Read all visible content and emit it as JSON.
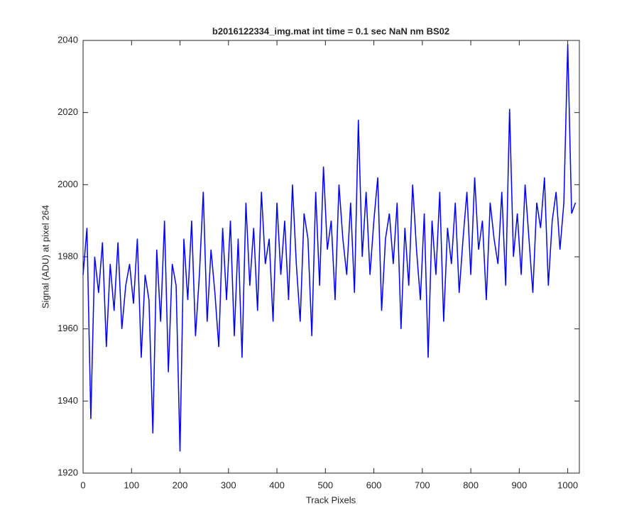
{
  "chart_data": {
    "type": "line",
    "title": "b2016122334_img.mat int time = 0.1 sec  NaN nm BS02",
    "x_label": "Track Pixels",
    "y_label": "Signal (ADU) at pixel 264",
    "x": [
      0,
      8,
      16,
      24,
      32,
      40,
      48,
      56,
      64,
      72,
      80,
      88,
      96,
      104,
      112,
      120,
      128,
      136,
      144,
      152,
      160,
      168,
      176,
      184,
      192,
      200,
      208,
      216,
      224,
      232,
      240,
      248,
      256,
      264,
      272,
      280,
      288,
      296,
      304,
      312,
      320,
      328,
      336,
      344,
      352,
      360,
      368,
      376,
      384,
      392,
      400,
      408,
      416,
      424,
      432,
      440,
      448,
      456,
      464,
      472,
      480,
      488,
      496,
      504,
      512,
      520,
      528,
      536,
      544,
      552,
      560,
      568,
      576,
      584,
      592,
      600,
      608,
      616,
      624,
      632,
      640,
      648,
      656,
      664,
      672,
      680,
      688,
      696,
      704,
      712,
      720,
      728,
      736,
      744,
      752,
      760,
      768,
      776,
      784,
      792,
      800,
      808,
      816,
      824,
      832,
      840,
      848,
      856,
      864,
      872,
      880,
      888,
      896,
      904,
      912,
      920,
      928,
      936,
      944,
      952,
      960,
      968,
      976,
      984,
      992,
      1000,
      1008,
      1016
    ],
    "series": [
      {
        "name": "signal",
        "color": "#0000ff",
        "values": [
          1975,
          1988,
          1935,
          1980,
          1970,
          1984,
          1955,
          1978,
          1965,
          1984,
          1960,
          1972,
          1978,
          1967,
          1985,
          1952,
          1975,
          1968,
          1931,
          1982,
          1962,
          1990,
          1948,
          1978,
          1972,
          1926,
          1985,
          1968,
          1990,
          1958,
          1975,
          1998,
          1962,
          1982,
          1970,
          1955,
          1988,
          1968,
          1990,
          1958,
          1985,
          1952,
          1995,
          1972,
          1988,
          1965,
          1998,
          1978,
          1985,
          1962,
          1995,
          1975,
          1990,
          1968,
          2000,
          1978,
          1962,
          1992,
          1985,
          1958,
          1998,
          1972,
          2005,
          1982,
          1990,
          1968,
          2000,
          1985,
          1975,
          1995,
          1970,
          2018,
          1980,
          1998,
          1975,
          1990,
          2002,
          1965,
          1985,
          1992,
          1978,
          1995,
          1960,
          1988,
          1972,
          2000,
          1982,
          1968,
          1992,
          1952,
          1990,
          1975,
          1998,
          1962,
          1988,
          1978,
          1995,
          1970,
          1985,
          1998,
          1975,
          2002,
          1982,
          1990,
          1968,
          1995,
          1985,
          1978,
          1998,
          1972,
          2021,
          1980,
          1992,
          1975,
          2000,
          1985,
          1970,
          1995,
          1988,
          2002,
          1972,
          1990,
          1998,
          1982,
          1995,
          2039,
          1992,
          1995
        ]
      }
    ],
    "xlim": [
      0,
      1024
    ],
    "ylim": [
      1920,
      2040
    ],
    "xticks": [
      0,
      100,
      200,
      300,
      400,
      500,
      600,
      700,
      800,
      900,
      1000
    ],
    "yticks": [
      1920,
      1940,
      1960,
      1980,
      2000,
      2020,
      2040
    ]
  }
}
